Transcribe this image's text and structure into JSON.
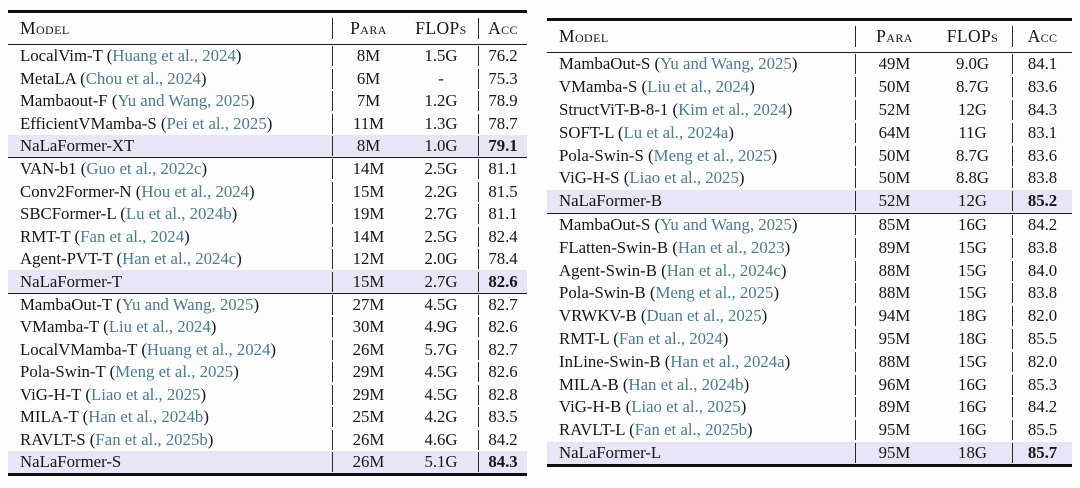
{
  "colors": {
    "citation": "#4d7b8e",
    "highlight_row": "#e7e5f6",
    "text": "#161616",
    "rule": "#0d0d0d"
  },
  "tables": [
    {
      "id": "left",
      "headers": {
        "model": "Model",
        "para": "Para",
        "flops": "FLOPs",
        "acc": "Acc"
      },
      "sections": [
        {
          "rows": [
            {
              "model": "LocalVim-T",
              "citation": "Huang et al., 2024",
              "para": "8M",
              "flops": "1.5G",
              "acc": "76.2",
              "highlight": false
            },
            {
              "model": "MetaLA",
              "citation": "Chou et al., 2024",
              "para": "6M",
              "flops": "-",
              "acc": "75.3",
              "highlight": false
            },
            {
              "model": "Mambaout-F",
              "citation": "Yu and Wang, 2025",
              "para": "7M",
              "flops": "1.2G",
              "acc": "78.9",
              "highlight": false
            },
            {
              "model": "EfficientVMamba-S",
              "citation": "Pei et al., 2025",
              "para": "11M",
              "flops": "1.3G",
              "acc": "78.7",
              "highlight": false
            },
            {
              "model": "NaLaFormer-XT",
              "citation": null,
              "para": "8M",
              "flops": "1.0G",
              "acc": "79.1",
              "highlight": true
            }
          ]
        },
        {
          "rows": [
            {
              "model": "VAN-b1",
              "citation": "Guo et al., 2022c",
              "para": "14M",
              "flops": "2.5G",
              "acc": "81.1",
              "highlight": false
            },
            {
              "model": "Conv2Former-N",
              "citation": "Hou et al., 2024",
              "para": "15M",
              "flops": "2.2G",
              "acc": "81.5",
              "highlight": false
            },
            {
              "model": "SBCFormer-L",
              "citation": "Lu et al., 2024b",
              "para": "19M",
              "flops": "2.7G",
              "acc": "81.1",
              "highlight": false
            },
            {
              "model": "RMT-T",
              "citation": "Fan et al., 2024",
              "para": "14M",
              "flops": "2.5G",
              "acc": "82.4",
              "highlight": false
            },
            {
              "model": "Agent-PVT-T",
              "citation": "Han et al., 2024c",
              "para": "12M",
              "flops": "2.0G",
              "acc": "78.4",
              "highlight": false
            },
            {
              "model": "NaLaFormer-T",
              "citation": null,
              "para": "15M",
              "flops": "2.7G",
              "acc": "82.6",
              "highlight": true
            }
          ]
        },
        {
          "rows": [
            {
              "model": "MambaOut-T",
              "citation": "Yu and Wang, 2025",
              "para": "27M",
              "flops": "4.5G",
              "acc": "82.7",
              "highlight": false
            },
            {
              "model": "VMamba-T",
              "citation": "Liu et al., 2024",
              "para": "30M",
              "flops": "4.9G",
              "acc": "82.6",
              "highlight": false
            },
            {
              "model": "LocalVMamba-T",
              "citation": "Huang et al., 2024",
              "para": "26M",
              "flops": "5.7G",
              "acc": "82.7",
              "highlight": false
            },
            {
              "model": "Pola-Swin-T",
              "citation": "Meng et al., 2025",
              "para": "29M",
              "flops": "4.5G",
              "acc": "82.6",
              "highlight": false
            },
            {
              "model": "ViG-H-T",
              "citation": "Liao et al., 2025",
              "para": "29M",
              "flops": "4.5G",
              "acc": "82.8",
              "highlight": false
            },
            {
              "model": "MILA-T",
              "citation": "Han et al., 2024b",
              "para": "25M",
              "flops": "4.2G",
              "acc": "83.5",
              "highlight": false
            },
            {
              "model": "RAVLT-S",
              "citation": "Fan et al., 2025b",
              "para": "26M",
              "flops": "4.6G",
              "acc": "84.2",
              "highlight": false
            },
            {
              "model": "NaLaFormer-S",
              "citation": null,
              "para": "26M",
              "flops": "5.1G",
              "acc": "84.3",
              "highlight": true
            }
          ]
        }
      ]
    },
    {
      "id": "right",
      "headers": {
        "model": "Model",
        "para": "Para",
        "flops": "FLOPs",
        "acc": "Acc"
      },
      "sections": [
        {
          "rows": [
            {
              "model": "MambaOut-S",
              "citation": "Yu and Wang, 2025",
              "para": "49M",
              "flops": "9.0G",
              "acc": "84.1",
              "highlight": false
            },
            {
              "model": "VMamba-S",
              "citation": "Liu et al., 2024",
              "para": "50M",
              "flops": "8.7G",
              "acc": "83.6",
              "highlight": false
            },
            {
              "model": "StructViT-B-8-1",
              "citation": "Kim et al., 2024",
              "para": "52M",
              "flops": "12G",
              "acc": "84.3",
              "highlight": false
            },
            {
              "model": "SOFT-L",
              "citation": "Lu et al., 2024a",
              "para": "64M",
              "flops": "11G",
              "acc": "83.1",
              "highlight": false
            },
            {
              "model": "Pola-Swin-S",
              "citation": "Meng et al., 2025",
              "para": "50M",
              "flops": "8.7G",
              "acc": "83.6",
              "highlight": false
            },
            {
              "model": "ViG-H-S",
              "citation": "Liao et al., 2025",
              "para": "50M",
              "flops": "8.8G",
              "acc": "83.8",
              "highlight": false
            },
            {
              "model": "NaLaFormer-B",
              "citation": null,
              "para": "52M",
              "flops": "12G",
              "acc": "85.2",
              "highlight": true
            }
          ]
        },
        {
          "rows": [
            {
              "model": "MambaOut-S",
              "citation": "Yu and Wang, 2025",
              "para": "85M",
              "flops": "16G",
              "acc": "84.2",
              "highlight": false
            },
            {
              "model": "FLatten-Swin-B",
              "citation": "Han et al., 2023",
              "para": "89M",
              "flops": "15G",
              "acc": "83.8",
              "highlight": false
            },
            {
              "model": "Agent-Swin-B",
              "citation": "Han et al., 2024c",
              "para": "88M",
              "flops": "15G",
              "acc": "84.0",
              "highlight": false
            },
            {
              "model": "Pola-Swin-B",
              "citation": "Meng et al., 2025",
              "para": "88M",
              "flops": "15G",
              "acc": "83.8",
              "highlight": false
            },
            {
              "model": "VRWKV-B",
              "citation": "Duan et al., 2025",
              "para": "94M",
              "flops": "18G",
              "acc": "82.0",
              "highlight": false
            },
            {
              "model": "RMT-L",
              "citation": "Fan et al., 2024",
              "para": "95M",
              "flops": "18G",
              "acc": "85.5",
              "highlight": false
            },
            {
              "model": "InLine-Swin-B",
              "citation": "Han et al., 2024a",
              "para": "88M",
              "flops": "15G",
              "acc": "82.0",
              "highlight": false
            },
            {
              "model": "MILA-B",
              "citation": "Han et al., 2024b",
              "para": "96M",
              "flops": "16G",
              "acc": "85.3",
              "highlight": false
            },
            {
              "model": "ViG-H-B",
              "citation": "Liao et al., 2025",
              "para": "89M",
              "flops": "16G",
              "acc": "84.2",
              "highlight": false
            },
            {
              "model": "RAVLT-L",
              "citation": "Fan et al., 2025b",
              "para": "95M",
              "flops": "16G",
              "acc": "85.5",
              "highlight": false
            },
            {
              "model": "NaLaFormer-L",
              "citation": null,
              "para": "95M",
              "flops": "18G",
              "acc": "85.7",
              "highlight": true
            }
          ]
        }
      ]
    }
  ]
}
